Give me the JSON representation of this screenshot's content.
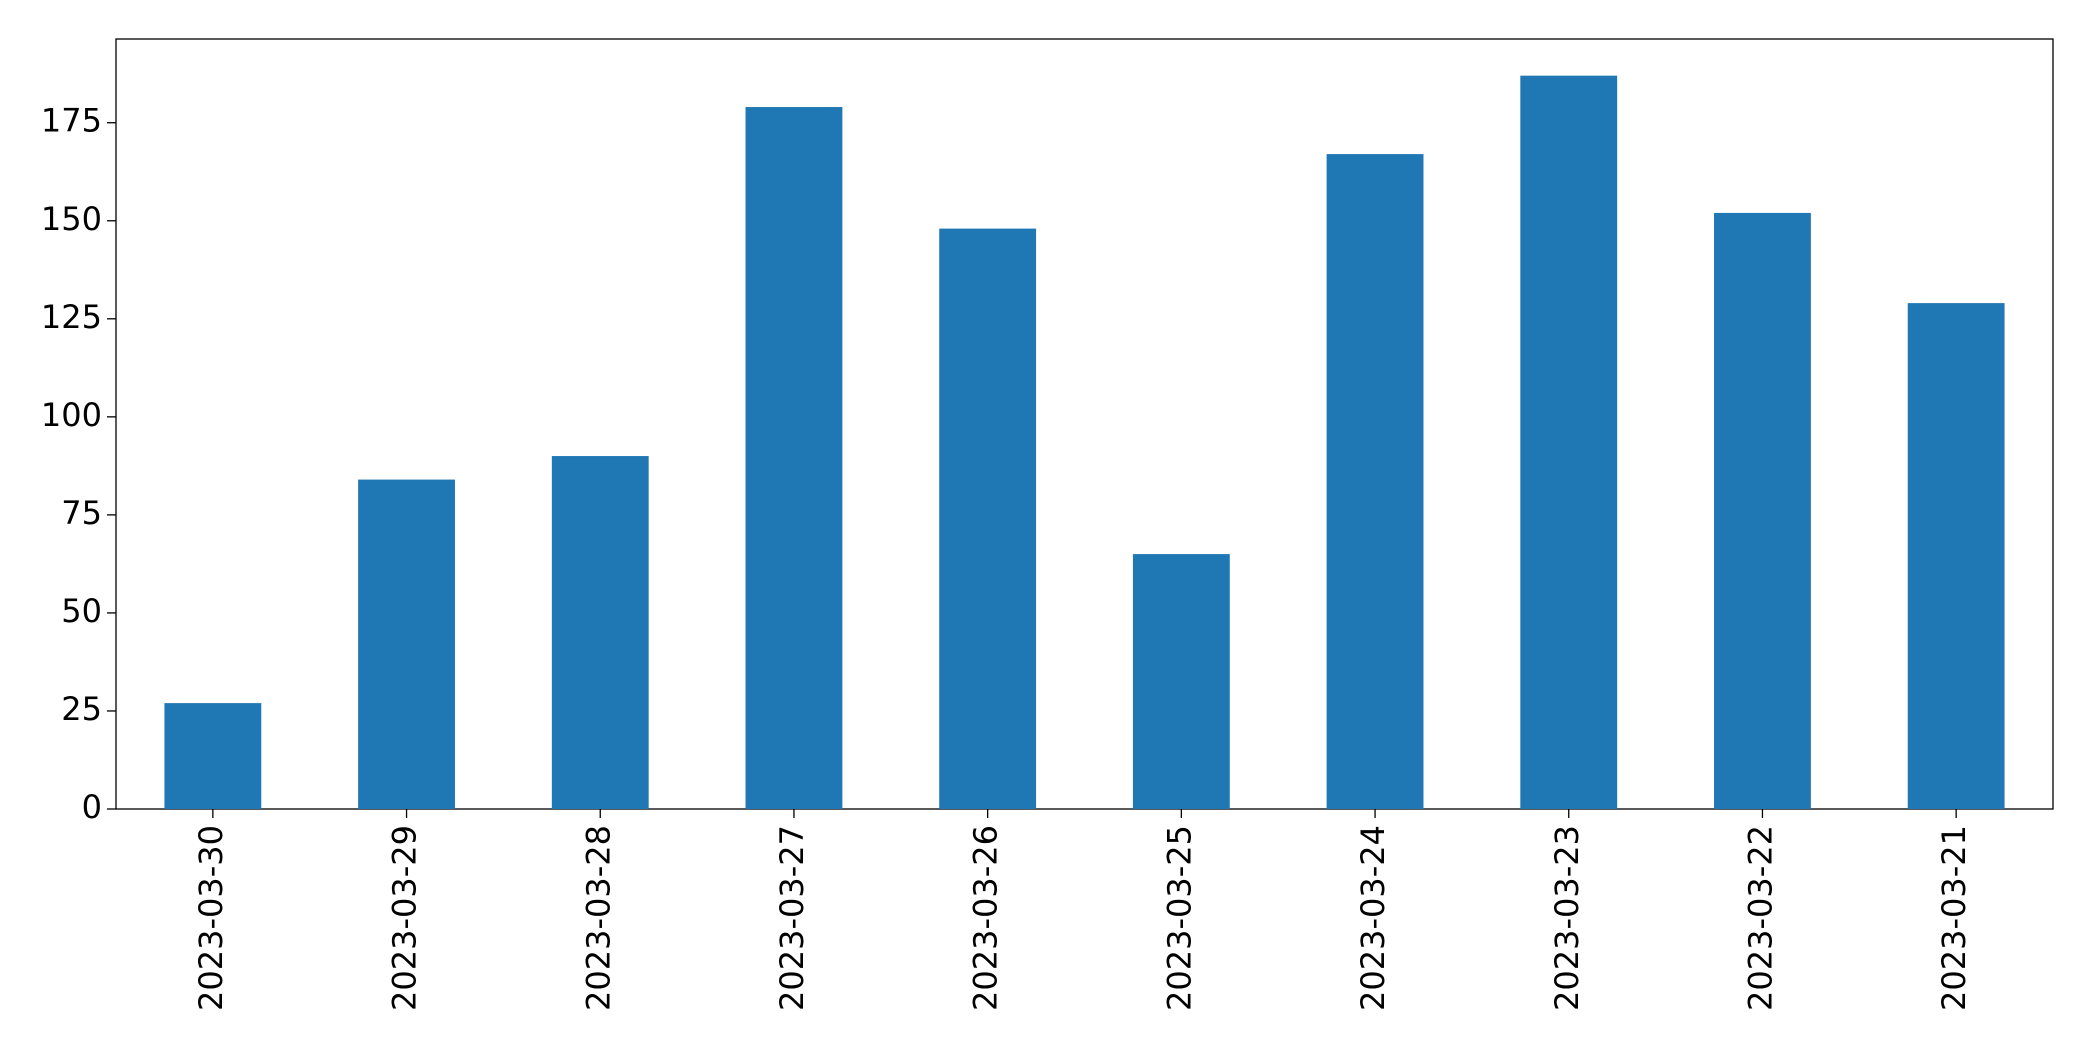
{
  "chart_data": {
    "type": "bar",
    "categories": [
      "2023-03-30",
      "2023-03-29",
      "2023-03-28",
      "2023-03-27",
      "2023-03-26",
      "2023-03-25",
      "2023-03-24",
      "2023-03-23",
      "2023-03-22",
      "2023-03-21"
    ],
    "values": [
      27,
      84,
      90,
      179,
      148,
      65,
      167,
      187,
      152,
      129
    ],
    "color": "#1f77b4",
    "ylim": [
      0,
      196.35
    ],
    "yticks": [
      0,
      25,
      50,
      75,
      100,
      125,
      150,
      175
    ],
    "grid": false
  }
}
